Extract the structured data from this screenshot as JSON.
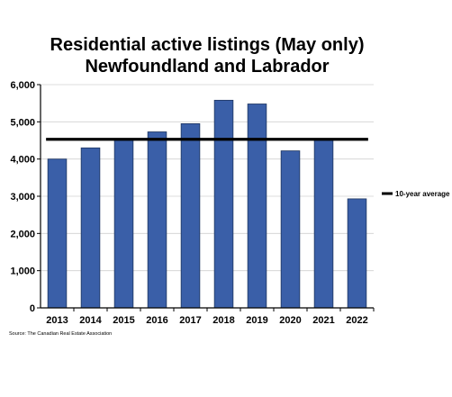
{
  "chart_data": {
    "type": "bar",
    "title_line1": "Residential active listings (May only)",
    "title_line2": "Newfoundland and Labrador",
    "categories": [
      "2013",
      "2014",
      "2015",
      "2016",
      "2017",
      "2018",
      "2019",
      "2020",
      "2021",
      "2022"
    ],
    "values": [
      4000,
      4300,
      4550,
      4730,
      4950,
      5580,
      5480,
      4220,
      4550,
      2930
    ],
    "reference_line": {
      "name": "10-year average",
      "value": 4530
    },
    "ylim": [
      0,
      6000
    ],
    "yticks": [
      0,
      1000,
      2000,
      3000,
      4000,
      5000,
      6000
    ],
    "ytick_labels": [
      "0",
      "1,000",
      "2,000",
      "3,000",
      "4,000",
      "5,000",
      "6,000"
    ],
    "grid": true,
    "legend_position": "right",
    "bar_color": "#3a5fa8",
    "bar_edge_color": "#1e3560",
    "avg_line_color": "#000000"
  },
  "source": "Source: The Canadian Real Estate Association"
}
